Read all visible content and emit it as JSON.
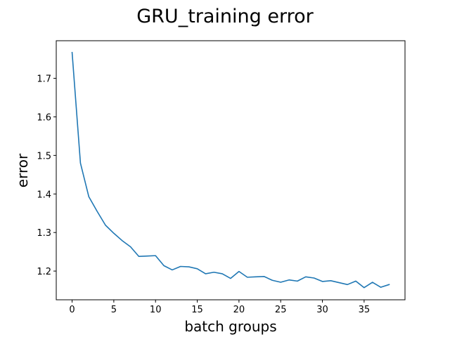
{
  "chart_data": {
    "type": "line",
    "title": "GRU_training error",
    "xlabel": "batch groups",
    "ylabel": "error",
    "xlim": [
      -1.9,
      39.9
    ],
    "ylim": [
      1.1255,
      1.7975
    ],
    "xticks": [
      0,
      5,
      10,
      15,
      20,
      25,
      30,
      35
    ],
    "xtick_labels": [
      "0",
      "5",
      "10",
      "15",
      "20",
      "25",
      "30",
      "35"
    ],
    "yticks": [
      1.2,
      1.3,
      1.4,
      1.5,
      1.6,
      1.7
    ],
    "ytick_labels": [
      "1.2",
      "1.3",
      "1.4",
      "1.5",
      "1.6",
      "1.7"
    ],
    "grid": false,
    "series": [
      {
        "color": "#1f77b4",
        "x": [
          0,
          1,
          2,
          3,
          4,
          5,
          6,
          7,
          8,
          9,
          10,
          11,
          12,
          13,
          14,
          15,
          16,
          17,
          18,
          19,
          20,
          21,
          22,
          23,
          24,
          25,
          26,
          27,
          28,
          29,
          30,
          31,
          32,
          33,
          34,
          35,
          36,
          37,
          38
        ],
        "y": [
          1.767,
          1.48,
          1.393,
          1.355,
          1.319,
          1.298,
          1.279,
          1.263,
          1.238,
          1.239,
          1.24,
          1.214,
          1.203,
          1.212,
          1.211,
          1.206,
          1.193,
          1.197,
          1.193,
          1.181,
          1.199,
          1.184,
          1.185,
          1.186,
          1.176,
          1.171,
          1.177,
          1.174,
          1.185,
          1.182,
          1.173,
          1.175,
          1.17,
          1.165,
          1.174,
          1.157,
          1.171,
          1.158,
          1.165
        ]
      }
    ]
  }
}
